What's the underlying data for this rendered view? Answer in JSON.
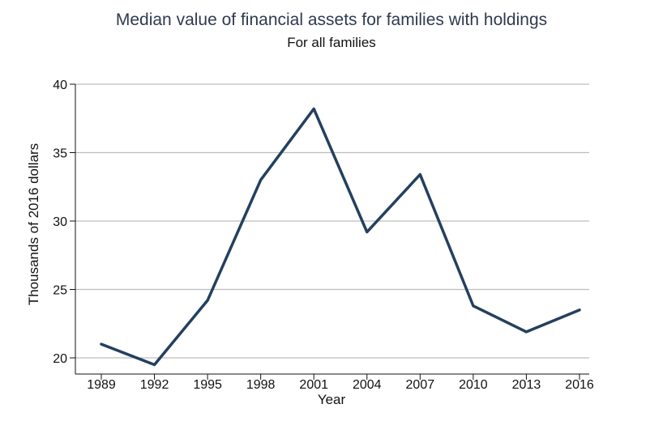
{
  "chart_data": {
    "type": "line",
    "title": "Median value of financial assets for families with holdings",
    "subtitle": "For all families",
    "xlabel": "Year",
    "ylabel": "Thousands of 2016 dollars",
    "x": [
      "1989",
      "1992",
      "1995",
      "1998",
      "2001",
      "2004",
      "2007",
      "2010",
      "2013",
      "2016"
    ],
    "series": [
      {
        "values": [
          21.0,
          19.5,
          24.2,
          33.0,
          38.2,
          29.2,
          33.4,
          23.8,
          21.9,
          23.5
        ]
      }
    ],
    "ylim": [
      20,
      40
    ],
    "yticks": [
      "20",
      "25",
      "30",
      "35",
      "40"
    ],
    "grid": true,
    "colors": {
      "line": "#23405f",
      "grid": "#bdbdbd",
      "title": "#2f3a4f"
    }
  }
}
